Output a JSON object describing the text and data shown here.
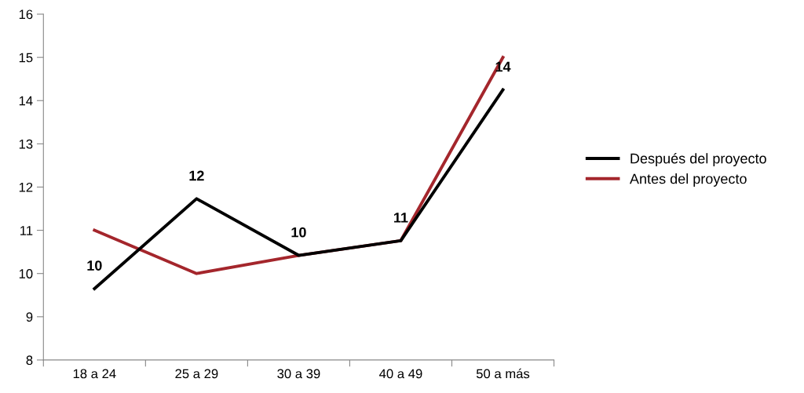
{
  "chart_data": {
    "type": "line",
    "categories": [
      "18 a 24",
      "25 a 29",
      "30 a 39",
      "40 a 49",
      "50 a más"
    ],
    "series": [
      {
        "name": "Después del proyecto",
        "color": "#000000",
        "values": [
          9.65,
          11.73,
          10.42,
          10.76,
          14.25
        ],
        "value_labels": [
          "10",
          "12",
          "10",
          "11",
          "14"
        ]
      },
      {
        "name": "Antes del proyecto",
        "color": "#a4262c",
        "values": [
          11,
          10,
          10.42,
          10.76,
          15
        ]
      }
    ],
    "ylim": [
      8,
      16
    ],
    "yticks": [
      8,
      9,
      10,
      11,
      12,
      13,
      14,
      15,
      16
    ],
    "grid": false,
    "legend": "right",
    "marker": "none",
    "line_style": "solid"
  }
}
